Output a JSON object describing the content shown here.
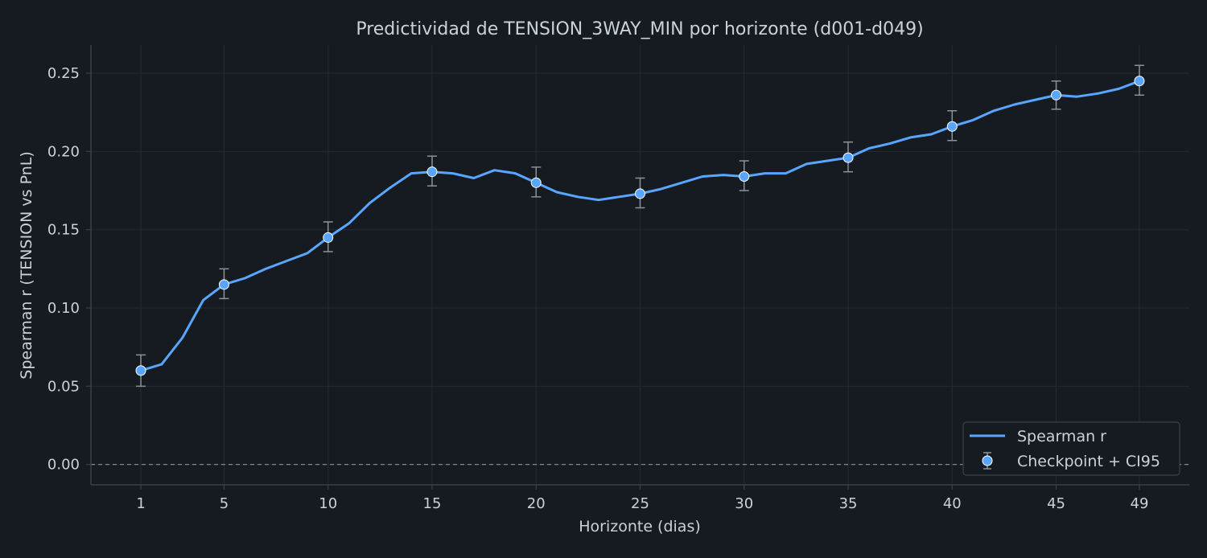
{
  "colors": {
    "background": "#161b22",
    "axes_spine": "#3a4048",
    "grid": "#252b33",
    "text": "#c9d1d9",
    "line": "#58a6ff",
    "errorbar": "#8b929a",
    "marker_edge": "#ffffff",
    "zero_line": "#8b929a"
  },
  "chart_data": {
    "type": "line",
    "title": "Predictividad de TENSION_3WAY_MIN por horizonte (d001-d049)",
    "xlabel": "Horizonte (dias)",
    "ylabel": "Spearman r (TENSION vs PnL)",
    "xlim": [
      -1.4,
      51.4
    ],
    "ylim": [
      -0.013,
      0.268
    ],
    "xticks": [
      1,
      5,
      10,
      15,
      20,
      25,
      30,
      35,
      40,
      45,
      49
    ],
    "yticks": [
      0.0,
      0.05,
      0.1,
      0.15,
      0.2,
      0.25
    ],
    "ytick_labels": [
      "0.00",
      "0.05",
      "0.10",
      "0.15",
      "0.20",
      "0.25"
    ],
    "grid": true,
    "legend_position": "lower-right",
    "zero_line": {
      "y": 0.0,
      "style": "dashed"
    },
    "series": [
      {
        "name": "Spearman r",
        "kind": "line",
        "x": [
          1,
          2,
          3,
          4,
          5,
          6,
          7,
          8,
          9,
          10,
          11,
          12,
          13,
          14,
          15,
          16,
          17,
          18,
          19,
          20,
          21,
          22,
          23,
          24,
          25,
          26,
          27,
          28,
          29,
          30,
          31,
          32,
          33,
          34,
          35,
          36,
          37,
          38,
          39,
          40,
          41,
          42,
          43,
          44,
          45,
          46,
          47,
          48,
          49
        ],
        "y": [
          0.06,
          0.064,
          0.081,
          0.105,
          0.115,
          0.119,
          0.125,
          0.13,
          0.135,
          0.145,
          0.154,
          0.167,
          0.177,
          0.186,
          0.187,
          0.186,
          0.183,
          0.188,
          0.186,
          0.18,
          0.174,
          0.171,
          0.169,
          0.171,
          0.173,
          0.176,
          0.18,
          0.184,
          0.185,
          0.184,
          0.186,
          0.186,
          0.192,
          0.194,
          0.196,
          0.202,
          0.205,
          0.209,
          0.211,
          0.216,
          0.22,
          0.226,
          0.23,
          0.233,
          0.236,
          0.235,
          0.237,
          0.24,
          0.245
        ]
      },
      {
        "name": "Checkpoint + CI95",
        "kind": "errorbar",
        "x": [
          1,
          5,
          10,
          15,
          20,
          25,
          30,
          35,
          40,
          45,
          49
        ],
        "y": [
          0.06,
          0.115,
          0.145,
          0.187,
          0.18,
          0.173,
          0.184,
          0.196,
          0.216,
          0.236,
          0.245
        ],
        "lower": [
          0.05,
          0.106,
          0.136,
          0.178,
          0.171,
          0.164,
          0.175,
          0.187,
          0.207,
          0.227,
          0.236
        ],
        "upper": [
          0.07,
          0.125,
          0.155,
          0.197,
          0.19,
          0.183,
          0.194,
          0.206,
          0.226,
          0.245,
          0.255
        ]
      }
    ]
  }
}
